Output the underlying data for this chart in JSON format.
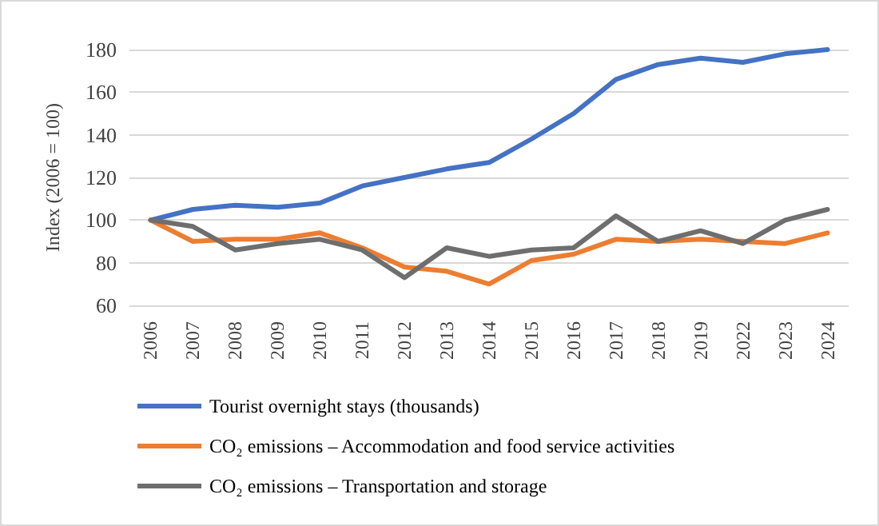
{
  "chart_data": {
    "type": "line",
    "ylabel": "Index (2006 = 100)",
    "categories": [
      "2006",
      "2007",
      "2008",
      "2009",
      "2010",
      "2011",
      "2012",
      "2013",
      "2014",
      "2015",
      "2016",
      "2017",
      "2018",
      "2019",
      "2022",
      "2023",
      "2024"
    ],
    "series": [
      {
        "name": "Tourist overnight stays (thousands)",
        "color": "#4472c4",
        "values": [
          100,
          105,
          107,
          106,
          108,
          116,
          120,
          124,
          127,
          138,
          150,
          166,
          173,
          176,
          174,
          178,
          180
        ]
      },
      {
        "name": "CO₂ emissions – Accommodation and food service activities",
        "color": "#ed7d31",
        "values": [
          100,
          90,
          91,
          91,
          94,
          87,
          78,
          76,
          70,
          81,
          84,
          91,
          90,
          91,
          90,
          89,
          94
        ]
      },
      {
        "name": "CO₂ emissions – Transportation and storage",
        "color": "#6e6e6e",
        "values": [
          100,
          97,
          86,
          89,
          91,
          86,
          73,
          87,
          83,
          86,
          87,
          102,
          90,
          95,
          89,
          100,
          105
        ]
      }
    ],
    "ylim": [
      60,
      180
    ],
    "yticks": [
      60,
      80,
      100,
      120,
      140,
      160,
      180
    ],
    "grid": "y",
    "legend": "bottom",
    "marker": "none",
    "line_style": "solid"
  }
}
